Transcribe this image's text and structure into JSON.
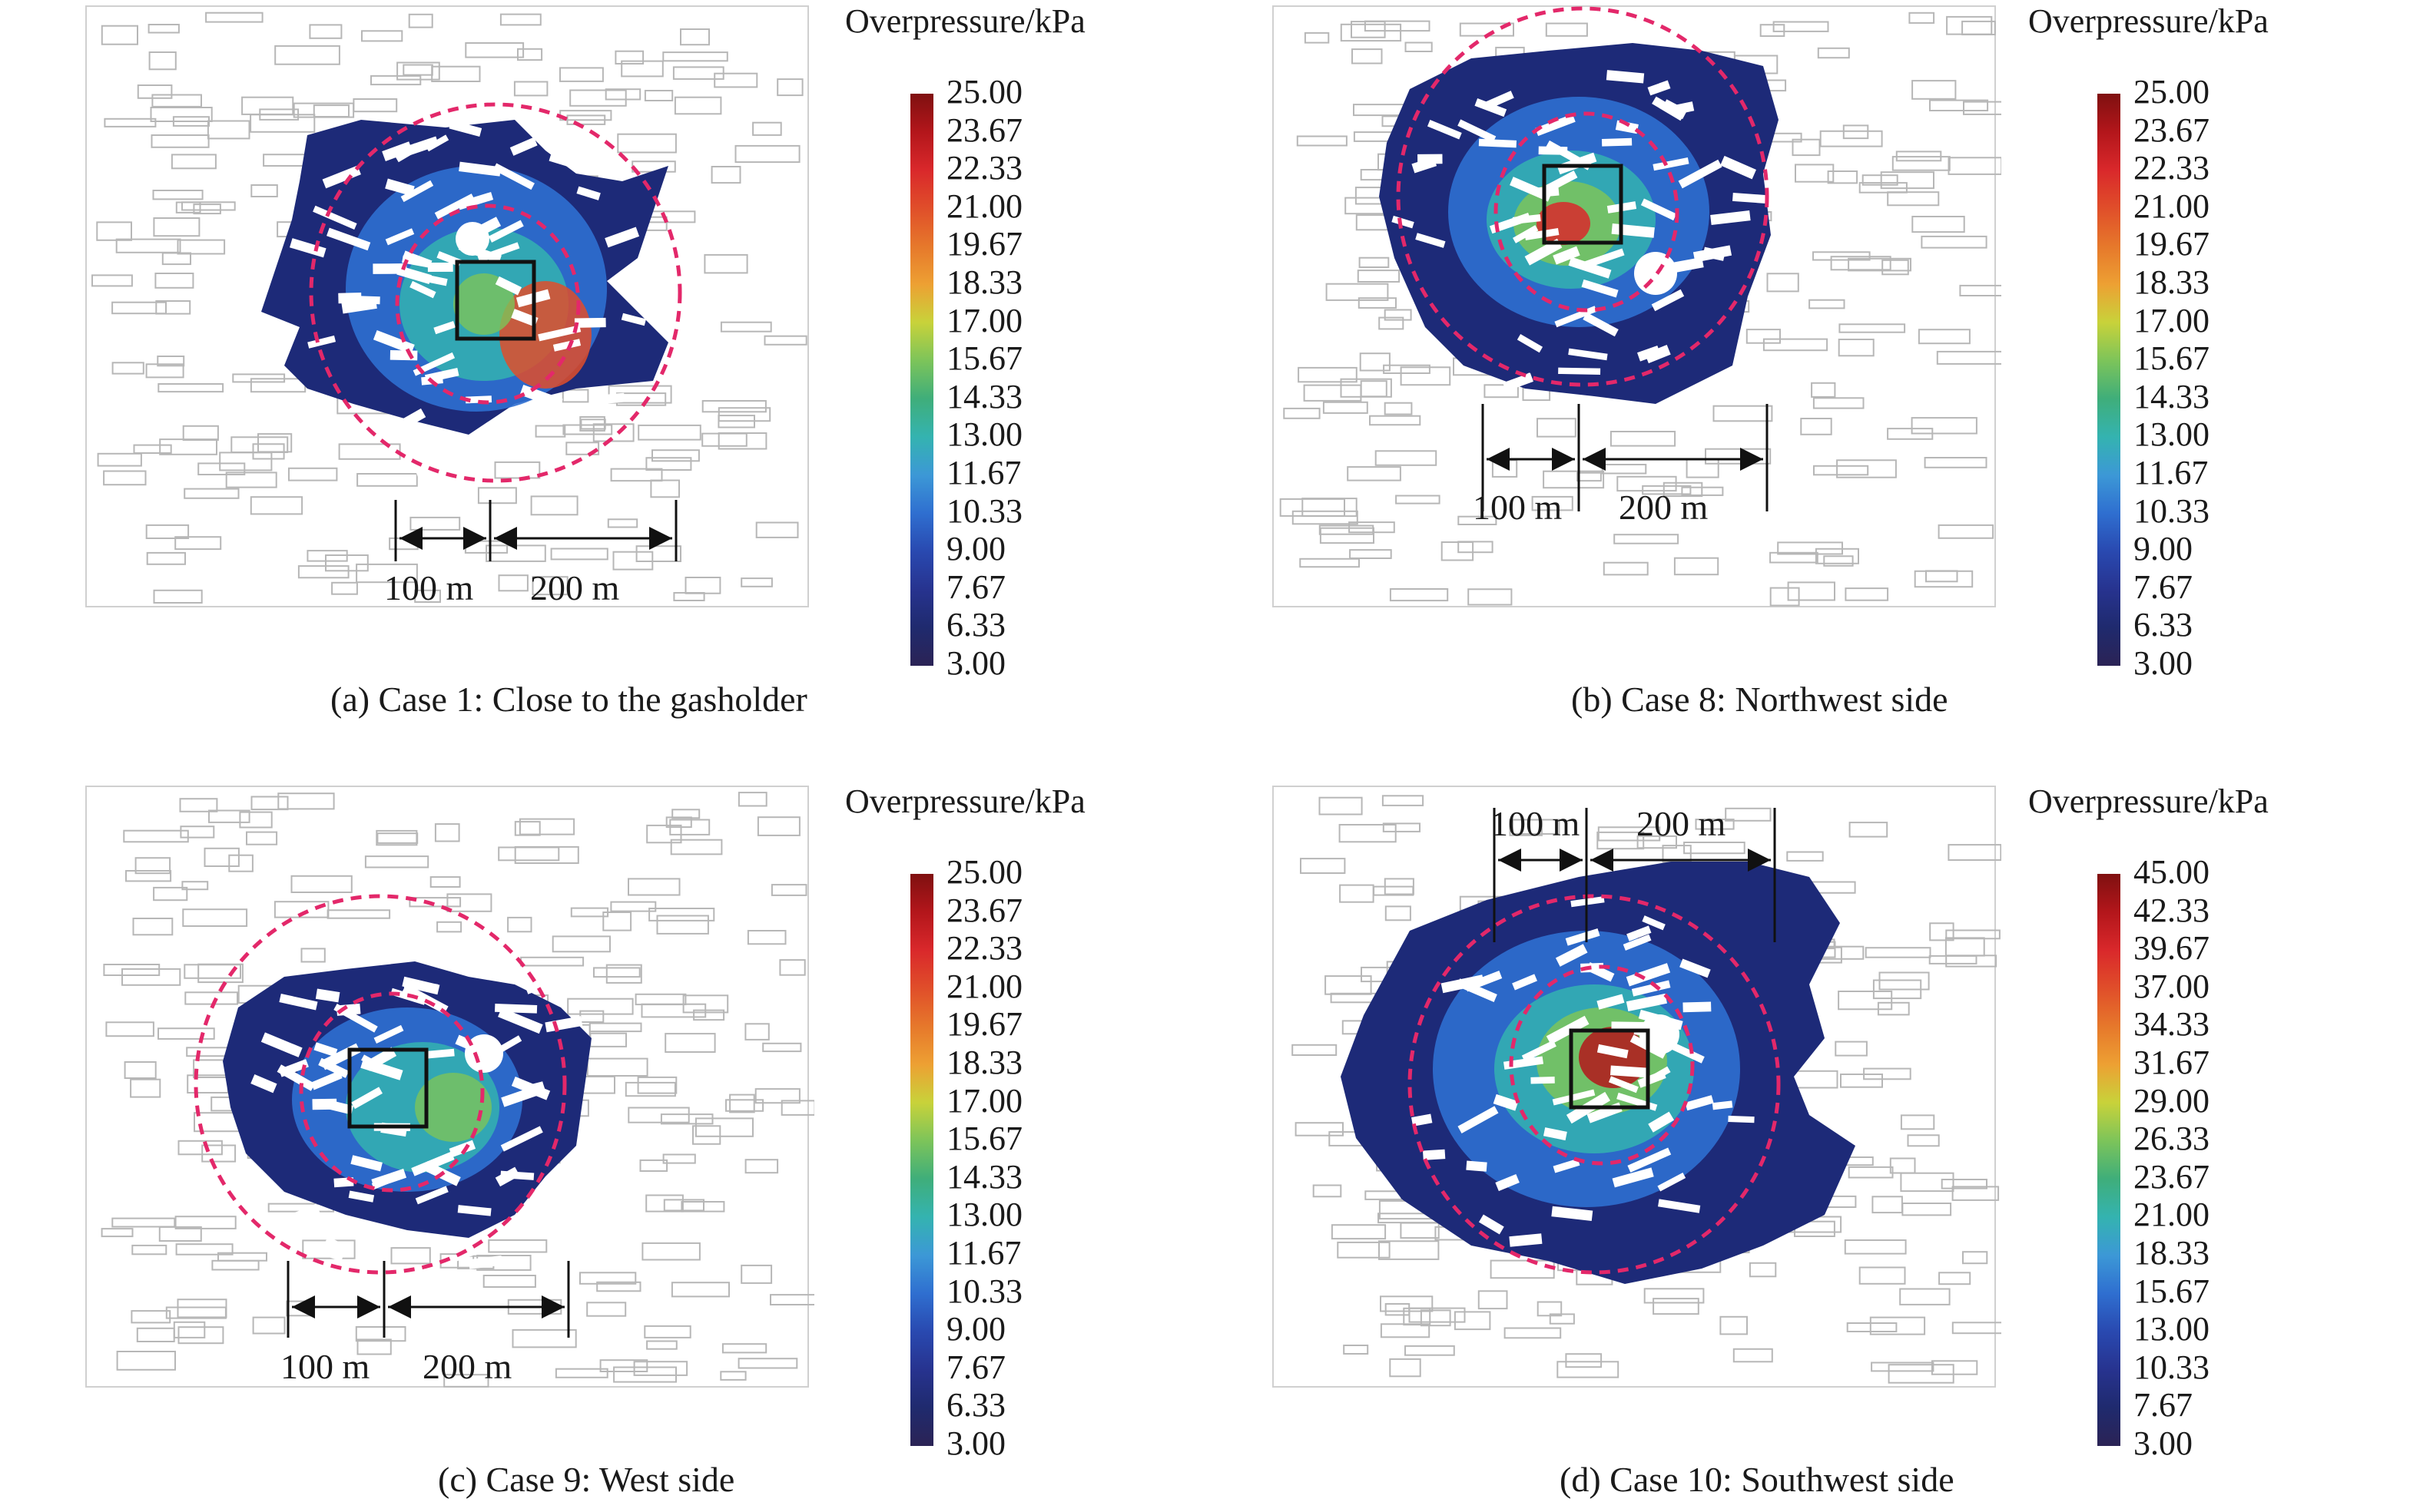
{
  "panels": [
    {
      "id": "a",
      "caption": "(a) Case 1: Close to the gasholder",
      "colorbar_title": "Overpressure/kPa",
      "colorbar_ticks": [
        "25.00",
        "23.67",
        "22.33",
        "21.00",
        "19.67",
        "18.33",
        "17.00",
        "15.67",
        "14.33",
        "13.00",
        "11.67",
        "10.33",
        "9.00",
        "7.67",
        "6.33",
        "3.00"
      ],
      "scale_labels": [
        "100 m",
        "200 m"
      ]
    },
    {
      "id": "b",
      "caption": "(b) Case 8: Northwest side",
      "colorbar_title": "Overpressure/kPa",
      "colorbar_ticks": [
        "25.00",
        "23.67",
        "22.33",
        "21.00",
        "19.67",
        "18.33",
        "17.00",
        "15.67",
        "14.33",
        "13.00",
        "11.67",
        "10.33",
        "9.00",
        "7.67",
        "6.33",
        "3.00"
      ],
      "scale_labels": [
        "100 m",
        "200 m"
      ]
    },
    {
      "id": "c",
      "caption": "(c) Case 9: West side",
      "colorbar_title": "Overpressure/kPa",
      "colorbar_ticks": [
        "25.00",
        "23.67",
        "22.33",
        "21.00",
        "19.67",
        "18.33",
        "17.00",
        "15.67",
        "14.33",
        "13.00",
        "11.67",
        "10.33",
        "9.00",
        "7.67",
        "6.33",
        "3.00"
      ],
      "scale_labels": [
        "100 m",
        "200 m"
      ]
    },
    {
      "id": "d",
      "caption": "(d) Case 10: Southwest side",
      "colorbar_title": "Overpressure/kPa",
      "colorbar_ticks": [
        "45.00",
        "42.33",
        "39.67",
        "37.00",
        "34.33",
        "31.67",
        "29.00",
        "26.33",
        "23.67",
        "21.00",
        "18.33",
        "15.67",
        "13.00",
        "10.33",
        "7.67",
        "3.00"
      ],
      "scale_labels": [
        "100 m",
        "200 m"
      ]
    }
  ],
  "colors": {
    "colormap": [
      "#7f1010",
      "#b3161b",
      "#d9282b",
      "#e04e2a",
      "#e6782b",
      "#eda033",
      "#c8d23a",
      "#7cc45a",
      "#3fae7a",
      "#34b3b0",
      "#3c98d6",
      "#2f6fd0",
      "#2949b0",
      "#27338f",
      "#1f2a6e",
      "#2b2355"
    ],
    "field_dark": "#1d2a78",
    "circle": "#e3286a",
    "building_outline": "#b7b7b7"
  }
}
